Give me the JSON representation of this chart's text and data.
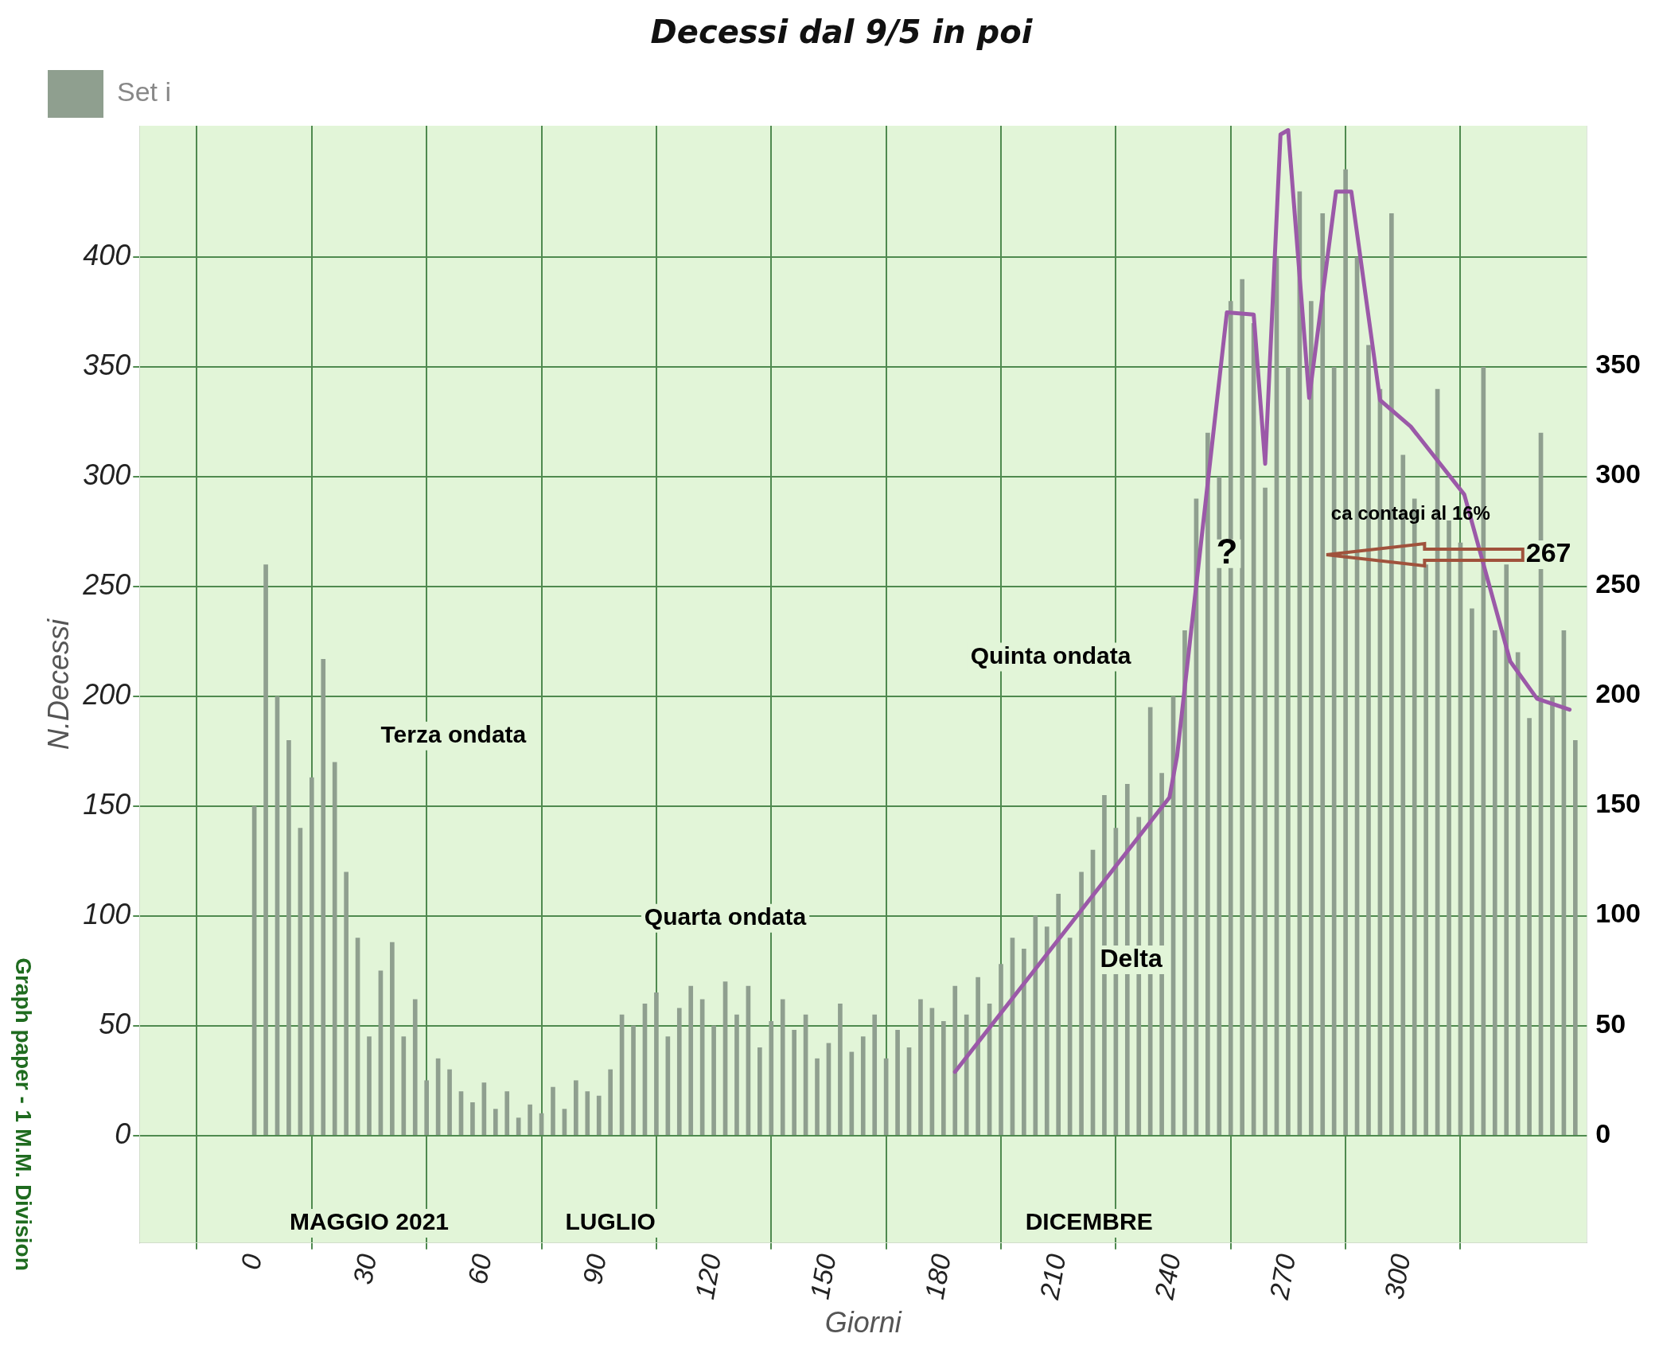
{
  "chart_data": {
    "type": "bar",
    "title": "Decessi dal 9/5 in poi",
    "xlabel": "Giorni",
    "ylabel": "N.Decessi",
    "annotations": [
      "Terza ondata",
      "Quarta ondata",
      "Quinta ondata",
      "Delta",
      "?",
      "ca contagi al 16%",
      "267",
      "MAGGIO 2021",
      "LUGLIO",
      "DICEMBRE",
      "Graph paper - 1 M.M. Division"
    ],
    "series": [
      {
        "name": "Set i",
        "color": "#8f9f8f",
        "x": [
          0,
          3,
          6,
          9,
          12,
          15,
          18,
          21,
          24,
          27,
          30,
          33,
          36,
          39,
          42,
          45,
          48,
          51,
          54,
          57,
          60,
          63,
          66,
          69,
          72,
          75,
          78,
          81,
          84,
          87,
          90,
          93,
          96,
          99,
          102,
          105,
          108,
          111,
          114,
          117,
          120,
          123,
          126,
          129,
          132,
          135,
          138,
          141,
          144,
          147,
          150,
          153,
          156,
          159,
          162,
          165,
          168,
          171,
          174,
          177,
          180,
          183,
          186,
          189,
          192,
          195,
          198,
          201,
          204,
          207,
          210,
          213,
          216,
          219,
          222,
          225,
          228,
          231,
          234,
          237,
          240,
          243,
          246,
          249,
          252,
          255,
          258,
          261,
          264,
          267,
          270,
          273,
          276,
          279,
          282,
          285,
          288,
          291,
          294,
          297,
          300,
          303,
          306,
          309,
          312,
          315,
          318,
          321,
          324,
          327,
          330,
          333,
          336,
          339,
          342,
          345
        ],
        "values": [
          150,
          260,
          200,
          180,
          140,
          163,
          217,
          170,
          120,
          90,
          45,
          75,
          88,
          45,
          62,
          25,
          35,
          30,
          20,
          15,
          24,
          12,
          20,
          8,
          14,
          10,
          22,
          12,
          25,
          20,
          18,
          30,
          55,
          50,
          60,
          65,
          45,
          58,
          68,
          62,
          50,
          70,
          55,
          68,
          40,
          52,
          62,
          48,
          55,
          35,
          42,
          60,
          38,
          45,
          55,
          35,
          48,
          40,
          62,
          58,
          52,
          68,
          55,
          72,
          60,
          78,
          90,
          85,
          100,
          95,
          110,
          90,
          120,
          130,
          155,
          140,
          160,
          145,
          195,
          165,
          200,
          230,
          290,
          320,
          300,
          380,
          390,
          370,
          295,
          400,
          350,
          430,
          380,
          420,
          350,
          440,
          400,
          360,
          340,
          420,
          310,
          290,
          260,
          340,
          280,
          270,
          240,
          350,
          230,
          260,
          220,
          190,
          320,
          200,
          230,
          180
        ]
      },
      {
        "type": "line",
        "color": "#9b59a8",
        "x": [
          183,
          239,
          241,
          254,
          261,
          264,
          268,
          270,
          275.5,
          282.5,
          286.5,
          294,
          302,
          316,
          328,
          335,
          343.5
        ],
        "values": [
          29,
          154,
          173,
          375,
          374,
          306,
          456,
          458,
          336,
          430,
          430,
          335,
          323,
          292,
          216,
          199,
          194
        ]
      }
    ],
    "xlim": [
      -30,
      348
    ],
    "xticks": [
      0,
      30,
      60,
      90,
      120,
      150,
      180,
      210,
      240,
      270,
      300
    ],
    "ylim": [
      -49,
      460
    ],
    "yticks": [
      0,
      50,
      100,
      150,
      200,
      250,
      300,
      350,
      400
    ],
    "y2lim": [
      -49,
      459
    ],
    "y2ticks": [
      0,
      50,
      100,
      150,
      200,
      250,
      300,
      350
    ],
    "grid": true,
    "legend": "top left"
  }
}
